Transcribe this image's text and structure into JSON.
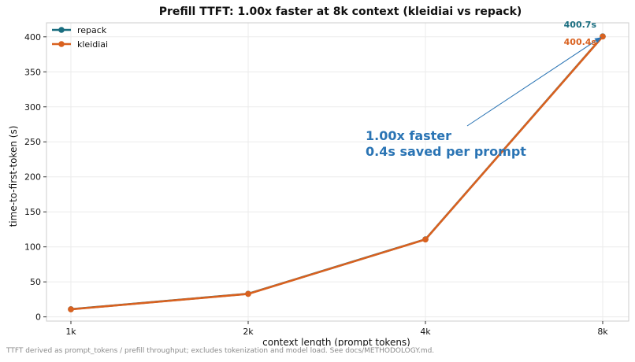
{
  "chart_data": {
    "type": "line",
    "title": "Prefill TTFT: 1.00x faster at 8k context (kleidiai vs repack)",
    "xlabel": "context length (prompt tokens)",
    "ylabel": "time-to-first-token (s)",
    "categories": [
      "1k",
      "2k",
      "4k",
      "8k"
    ],
    "ylim": [
      -6,
      420
    ],
    "yticks": [
      0,
      50,
      100,
      150,
      200,
      250,
      300,
      350,
      400
    ],
    "grid": true,
    "legend_position": "top-left",
    "series": [
      {
        "name": "repack",
        "color": "#1a6e80",
        "values": [
          11.0,
          33.0,
          110.8,
          400.7
        ]
      },
      {
        "name": "kleidiai",
        "color": "#d9611f",
        "values": [
          10.8,
          32.8,
          110.6,
          400.4
        ]
      }
    ],
    "end_labels": [
      {
        "series": "repack",
        "text": "400.7s",
        "color": "#1a6e80"
      },
      {
        "series": "kleidiai",
        "text": "400.4s",
        "color": "#d9611f"
      }
    ],
    "annotation": {
      "lines": [
        "1.00x faster",
        "0.4s saved per prompt"
      ],
      "color": "#2a74b4",
      "arrow_target": {
        "category": "8k",
        "value": 400.5
      }
    }
  },
  "footnote": "TTFT derived as prompt_tokens / prefill throughput; excludes tokenization and model load. See docs/METHODOLOGY.md."
}
